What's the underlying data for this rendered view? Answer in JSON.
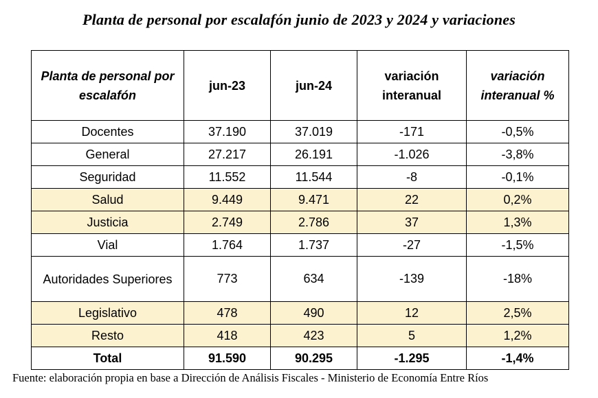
{
  "title": "Planta de personal por escalafón junio de 2023 y 2024 y variaciones",
  "table": {
    "headers": [
      "Planta de personal por escalafón",
      "jun-23",
      "jun-24",
      "variación interanual",
      "variación interanual %"
    ],
    "rows": [
      {
        "label": "Docentes",
        "jun23": "37.190",
        "jun24": "37.019",
        "var": "-171",
        "var_pct": "-0,5%",
        "highlight": false
      },
      {
        "label": "General",
        "jun23": "27.217",
        "jun24": "26.191",
        "var": "-1.026",
        "var_pct": "-3,8%",
        "highlight": false
      },
      {
        "label": "Seguridad",
        "jun23": "11.552",
        "jun24": "11.544",
        "var": "-8",
        "var_pct": "-0,1%",
        "highlight": false
      },
      {
        "label": "Salud",
        "jun23": "9.449",
        "jun24": "9.471",
        "var": "22",
        "var_pct": "0,2%",
        "highlight": true
      },
      {
        "label": "Justicia",
        "jun23": "2.749",
        "jun24": "2.786",
        "var": "37",
        "var_pct": "1,3%",
        "highlight": true
      },
      {
        "label": "Vial",
        "jun23": "1.764",
        "jun24": "1.737",
        "var": "-27",
        "var_pct": "-1,5%",
        "highlight": false
      },
      {
        "label": "Autoridades Superiores",
        "jun23": "773",
        "jun24": "634",
        "var": "-139",
        "var_pct": "-18%",
        "highlight": false
      },
      {
        "label": "Legislativo",
        "jun23": "478",
        "jun24": "490",
        "var": "12",
        "var_pct": "2,5%",
        "highlight": true
      },
      {
        "label": "Resto",
        "jun23": "418",
        "jun24": "423",
        "var": "5",
        "var_pct": "1,2%",
        "highlight": true
      }
    ],
    "total": {
      "label": "Total",
      "jun23": "91.590",
      "jun24": "90.295",
      "var": "-1.295",
      "var_pct": "-1,4%"
    }
  },
  "source": "Fuente: elaboración propia en base a Dirección de Análisis Fiscales - Ministerio de Economía Entre Ríos",
  "colors": {
    "highlight_row": "#fcf2d0",
    "border": "#000000"
  }
}
